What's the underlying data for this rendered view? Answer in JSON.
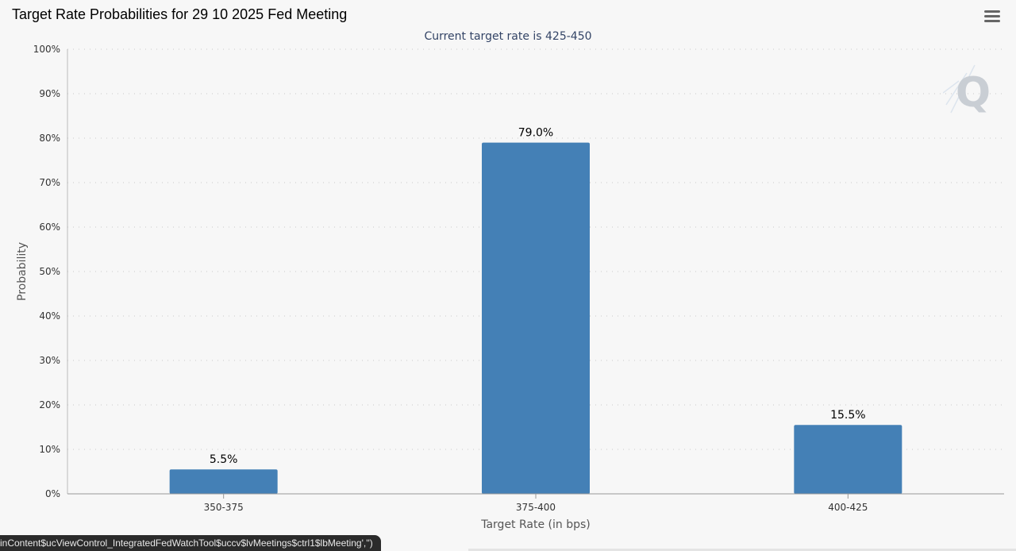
{
  "chart_data": {
    "type": "bar",
    "title": "Target Rate Probabilities for 29 10 2025 Fed Meeting",
    "subtitle": "Current target rate is 425-450",
    "xlabel": "Target Rate (in bps)",
    "ylabel": "Probability",
    "categories": [
      "350-375",
      "375-400",
      "400-425"
    ],
    "values": [
      5.5,
      79.0,
      15.5
    ],
    "data_labels": [
      "5.5%",
      "79.0%",
      "15.5%"
    ],
    "ylim": [
      0,
      100
    ],
    "yticks": [
      0,
      10,
      20,
      30,
      40,
      50,
      60,
      70,
      80,
      90,
      100
    ],
    "ytick_labels": [
      "0%",
      "10%",
      "20%",
      "30%",
      "40%",
      "50%",
      "60%",
      "70%",
      "80%",
      "90%",
      "100%"
    ],
    "grid": true,
    "bar_color": "#4480b6"
  },
  "status_bar": {
    "text": "inContent$ucViewControl_IntegratedFedWatchTool$uccv$lvMeetings$ctrl1$lbMeeting','')"
  },
  "watermark": {
    "letter": "Q"
  },
  "menu": {
    "icon": "hamburger-menu-icon"
  }
}
